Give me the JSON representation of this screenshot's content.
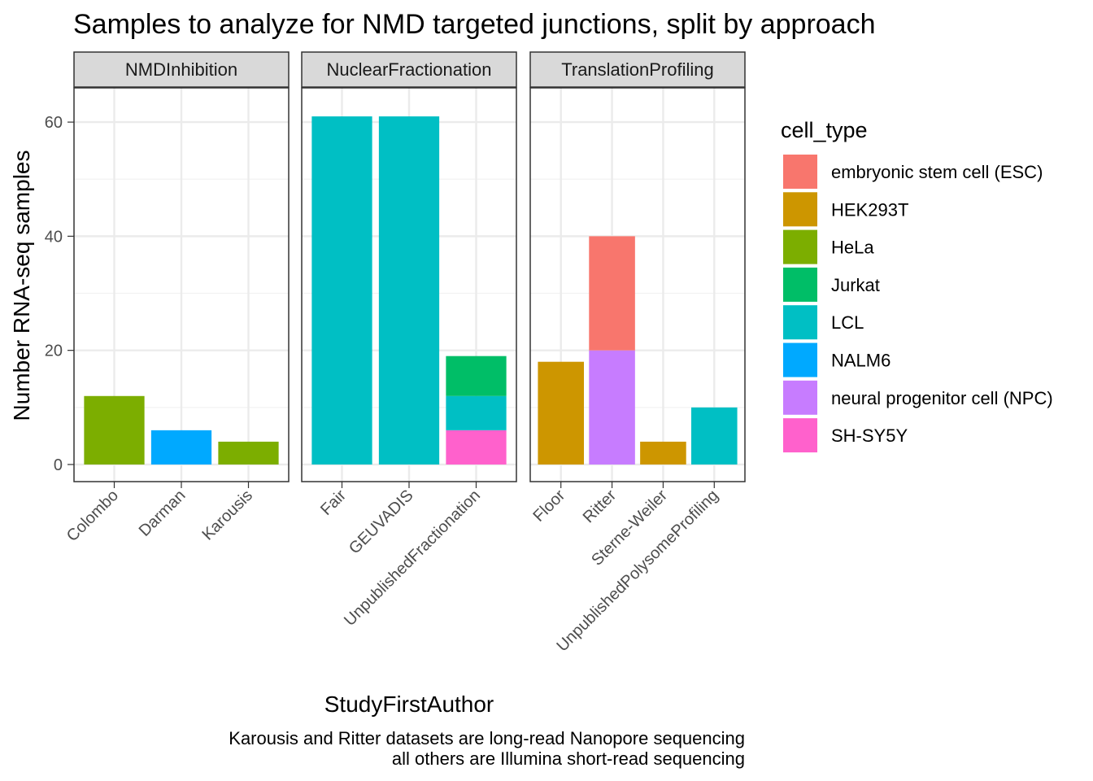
{
  "chart_data": {
    "type": "bar",
    "stacked": true,
    "title": "Samples to analyze for NMD targeted junctions, split by approach",
    "xlabel": "StudyFirstAuthor",
    "ylabel": "Number RNA-seq samples",
    "ylim": [
      -3,
      66
    ],
    "yticks": [
      0,
      20,
      40,
      60
    ],
    "grid": true,
    "caption": [
      "Karousis and Ritter datasets are long-read Nanopore sequencing",
      "all others are Illumina short-read sequencing"
    ],
    "legend": {
      "title": "cell_type",
      "position": "right",
      "items": [
        {
          "label": "embryonic stem cell (ESC)",
          "color": "#F8766D"
        },
        {
          "label": "HEK293T",
          "color": "#CD9600"
        },
        {
          "label": "HeLa",
          "color": "#7CAE00"
        },
        {
          "label": "Jurkat",
          "color": "#00BE67"
        },
        {
          "label": "LCL",
          "color": "#00BFC4"
        },
        {
          "label": "NALM6",
          "color": "#00A9FF"
        },
        {
          "label": "neural progenitor cell (NPC)",
          "color": "#C77CFF"
        },
        {
          "label": "SH-SY5Y",
          "color": "#FF61CC"
        }
      ]
    },
    "facets": [
      {
        "name": "NMDInhibition",
        "categories": [
          "Colombo",
          "Darman",
          "Karousis"
        ],
        "bars": [
          [
            {
              "cell_type": "HeLa",
              "value": 12
            }
          ],
          [
            {
              "cell_type": "NALM6",
              "value": 6
            }
          ],
          [
            {
              "cell_type": "HeLa",
              "value": 4
            }
          ]
        ]
      },
      {
        "name": "NuclearFractionation",
        "categories": [
          "Fair",
          "GEUVADIS",
          "UnpublishedFractionation"
        ],
        "bars": [
          [
            {
              "cell_type": "LCL",
              "value": 61
            }
          ],
          [
            {
              "cell_type": "LCL",
              "value": 61
            }
          ],
          [
            {
              "cell_type": "SH-SY5Y",
              "value": 6
            },
            {
              "cell_type": "LCL",
              "value": 6
            },
            {
              "cell_type": "Jurkat",
              "value": 7
            }
          ]
        ]
      },
      {
        "name": "TranslationProfiling",
        "categories": [
          "Floor",
          "Ritter",
          "Sterne-Weiler",
          "UnpublishedPolysomeProfiling"
        ],
        "bars": [
          [
            {
              "cell_type": "HEK293T",
              "value": 18
            }
          ],
          [
            {
              "cell_type": "neural progenitor cell (NPC)",
              "value": 20
            },
            {
              "cell_type": "embryonic stem cell (ESC)",
              "value": 20
            }
          ],
          [
            {
              "cell_type": "HEK293T",
              "value": 4
            }
          ],
          [
            {
              "cell_type": "LCL",
              "value": 10
            }
          ]
        ]
      }
    ]
  }
}
